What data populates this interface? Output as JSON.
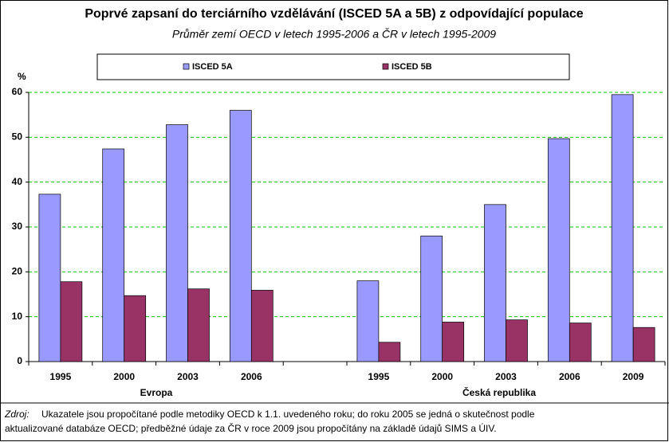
{
  "chart_data": {
    "type": "bar",
    "title": "Poprvé zapsaní do terciárního vzdělávání (ISCED 5A a 5B) z odpovídající populace",
    "subtitle": "Průměr zemí OECD v letech 1995-2006 a ČR v letech 1995-2009",
    "y_label": "%",
    "categories": [
      "1995",
      "2000",
      "2003",
      "2006",
      null,
      "1995",
      "2000",
      "2003",
      "2006",
      "2009"
    ],
    "group_labels": [
      "Evropa",
      "Česká republika"
    ],
    "series": [
      {
        "name": "ISCED 5A",
        "color": "#9999ff",
        "values": [
          37.3,
          47.4,
          52.8,
          56,
          null,
          18,
          28,
          35,
          49.7,
          59.5
        ]
      },
      {
        "name": "ISCED 5B",
        "color": "#993366",
        "values": [
          17.8,
          14.7,
          16.2,
          15.9,
          null,
          4.3,
          8.8,
          9.3,
          8.6,
          7.6
        ]
      }
    ],
    "ylim": [
      0,
      60
    ],
    "yticks": [
      0,
      10,
      20,
      30,
      40,
      50,
      60
    ],
    "grid": true,
    "source_label": "Zdroj:",
    "footnote_lines": [
      "Ukazatele jsou propočítané podle metodiky OECD k 1.1. uvedeného roku; do roku 2005 se jedná o skutečnost podle",
      "aktualizované databáze OECD; předběžné údaje za ČR v roce 2009 jsou propočítány na základě údajů SIMS a ÚIV."
    ]
  }
}
